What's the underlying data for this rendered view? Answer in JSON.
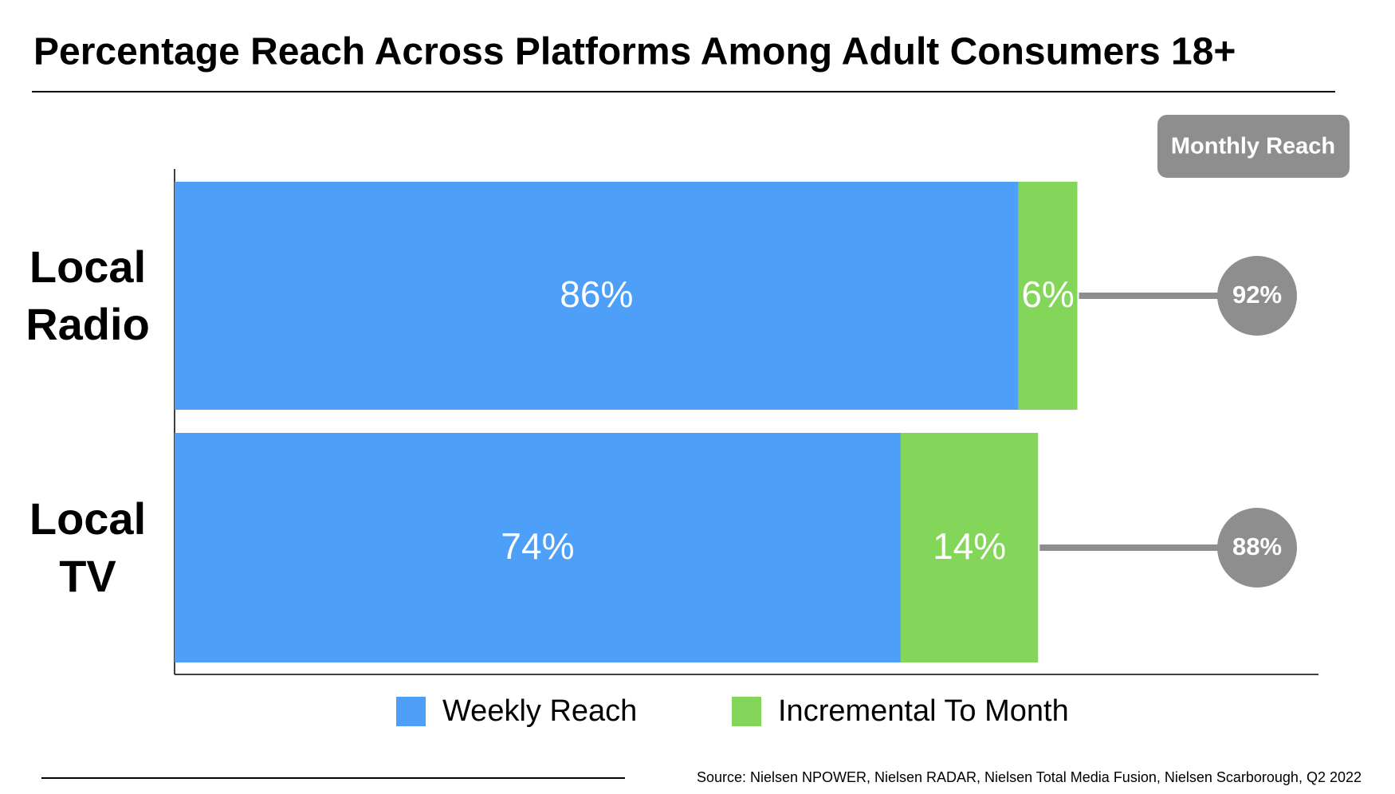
{
  "chart_data": {
    "type": "stacked-hbar",
    "title": "Percentage Reach Across Platforms Among Adult Consumers 18+",
    "categories": [
      "Local Radio",
      "Local TV"
    ],
    "series": [
      {
        "name": "Weekly Reach",
        "color": "#4d9ff7",
        "values": [
          86,
          74
        ],
        "value_labels": [
          "86%",
          "74%"
        ]
      },
      {
        "name": "Incremental To Month",
        "color": "#84d65a",
        "values": [
          6,
          14
        ],
        "value_labels": [
          "6%",
          "14%"
        ]
      }
    ],
    "totals": {
      "name": "Monthly Reach",
      "color": "#8e8e8e",
      "values": [
        92,
        88
      ],
      "value_labels": [
        "92%",
        "88%"
      ]
    },
    "xlim": [
      0,
      100
    ],
    "source": "Source: Nielsen NPOWER, Nielsen RADAR, Nielsen Total Media Fusion, Nielsen Scarborough, Q2 2022"
  }
}
